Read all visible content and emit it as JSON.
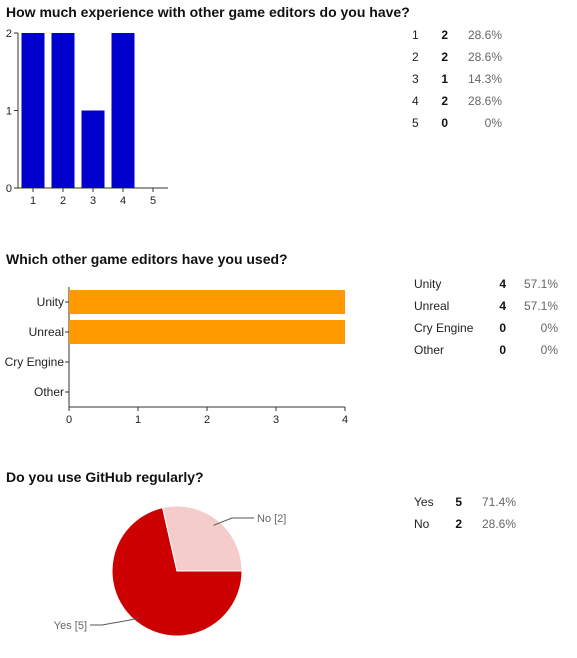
{
  "colors": {
    "bar_blue": "#0000cc",
    "bar_orange": "#ff9900",
    "pie_yes": "#cc0000",
    "pie_no": "#f4cccc",
    "axis": "#333333"
  },
  "questions": [
    {
      "title": "How much experience with other game editors do you have?"
    },
    {
      "title": "Which other game editors have you used?"
    },
    {
      "title": "Do you use GitHub regularly?"
    }
  ],
  "chart_data": [
    {
      "type": "bar",
      "categories": [
        "1",
        "2",
        "3",
        "4",
        "5"
      ],
      "values": [
        2,
        2,
        1,
        2,
        0
      ],
      "title": "How much experience with other game editors do you have?",
      "ylim": [
        0,
        2
      ],
      "yticks": [
        "0",
        "1",
        "2"
      ],
      "grid": false
    },
    {
      "type": "bar",
      "orientation": "horizontal",
      "categories": [
        "Unity",
        "Unreal",
        "Cry Engine",
        "Other"
      ],
      "values": [
        4,
        4,
        0,
        0
      ],
      "title": "Which other game editors have you used?",
      "xlim": [
        0,
        4
      ],
      "xticks": [
        "0",
        "1",
        "2",
        "3",
        "4"
      ],
      "grid": false
    },
    {
      "type": "pie",
      "categories": [
        "Yes",
        "No"
      ],
      "values": [
        5,
        2
      ],
      "labels": [
        "Yes [5]",
        "No [2]"
      ],
      "title": "Do you use GitHub regularly?"
    }
  ],
  "tables": [
    [
      {
        "label": "1",
        "count": "2",
        "percent": "28.6%"
      },
      {
        "label": "2",
        "count": "2",
        "percent": "28.6%"
      },
      {
        "label": "3",
        "count": "1",
        "percent": "14.3%"
      },
      {
        "label": "4",
        "count": "2",
        "percent": "28.6%"
      },
      {
        "label": "5",
        "count": "0",
        "percent": "0%"
      }
    ],
    [
      {
        "label": "Unity",
        "count": "4",
        "percent": "57.1%"
      },
      {
        "label": "Unreal",
        "count": "4",
        "percent": "57.1%"
      },
      {
        "label": "Cry Engine",
        "count": "0",
        "percent": "0%"
      },
      {
        "label": "Other",
        "count": "0",
        "percent": "0%"
      }
    ],
    [
      {
        "label": "Yes",
        "count": "5",
        "percent": "71.4%"
      },
      {
        "label": "No",
        "count": "2",
        "percent": "28.6%"
      }
    ]
  ]
}
